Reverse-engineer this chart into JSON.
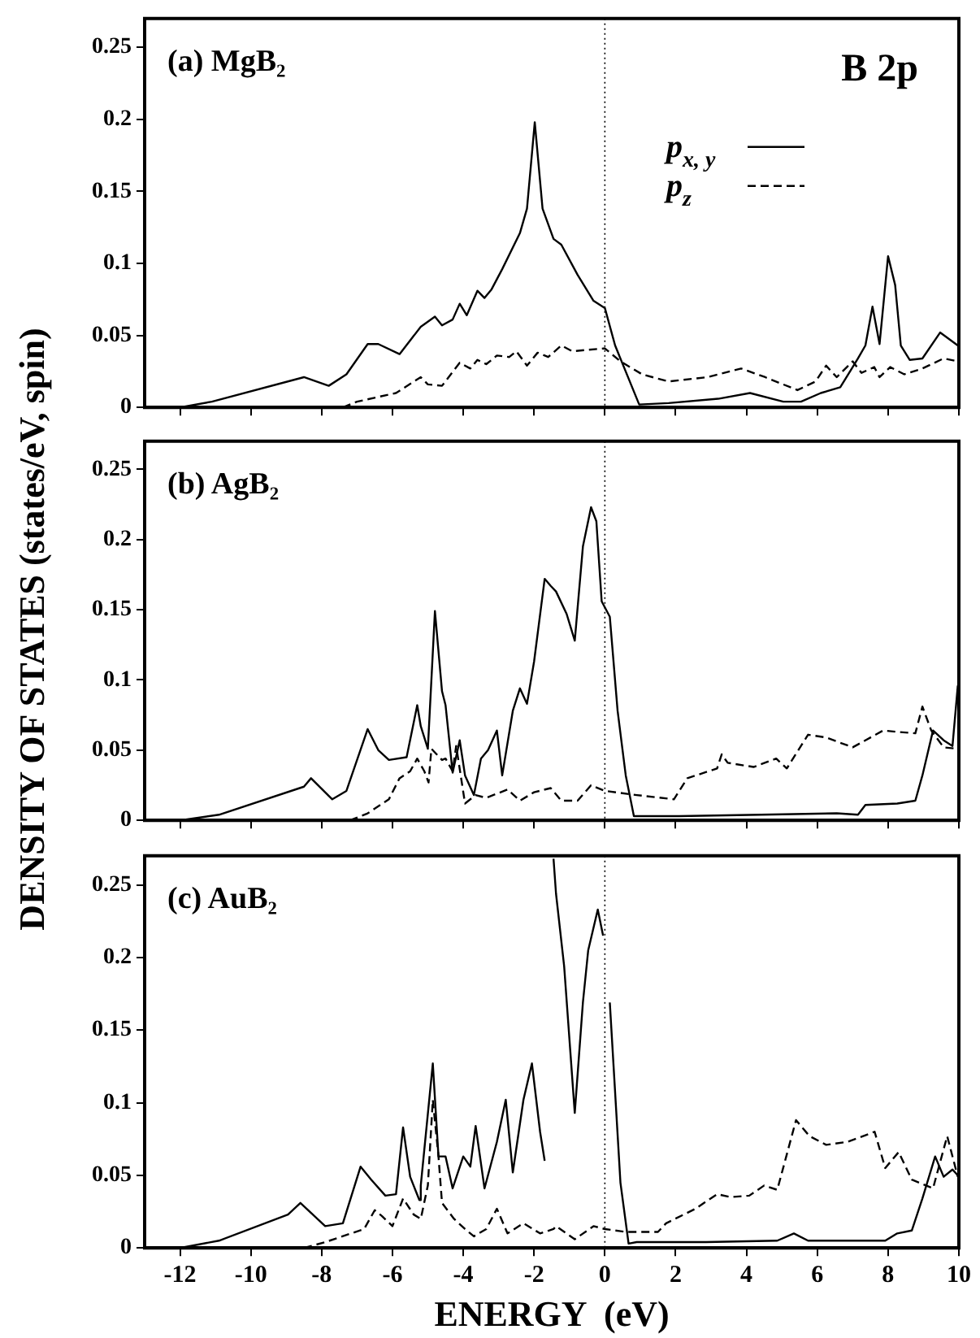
{
  "chart_data": [
    {
      "type": "line",
      "title": "(a) MgB₂",
      "ylabel": "DENSITY OF STATES (states/eV, spin)",
      "annotations": [
        "B 2p"
      ],
      "xlim": [
        -13,
        10
      ],
      "xticks": [
        -12,
        -10,
        -8,
        -6,
        -4,
        -2,
        0,
        2,
        4,
        6,
        8,
        10
      ],
      "ylim": [
        0,
        0.27
      ],
      "yticks": [
        0,
        0.05,
        0.1,
        0.15,
        0.2,
        0.25
      ],
      "tick_labels": "y",
      "legend": "top right",
      "ref_lines": [
        {
          "axis": "x",
          "value": 0,
          "line_style": "dotted"
        }
      ],
      "series": [
        {
          "name": "p$_{x, y}$",
          "color": "#000000",
          "line_style": "solid",
          "x": [
            -12,
            -11.1,
            -8.5,
            -7.8,
            -7.3,
            -6.7,
            -6.4,
            -5.8,
            -5.2,
            -4.8,
            -4.6,
            -4.3,
            -4.1,
            -3.9,
            -3.6,
            -3.4,
            -3.2,
            -2.9,
            -2.4,
            -2.2,
            -1.98,
            -1.76,
            -1.45,
            -1.23,
            -0.77,
            -0.32,
            0,
            0.29,
            0.97,
            1.8,
            3.2,
            4.1,
            5.04,
            5.54,
            6.1,
            6.65,
            7.0,
            7.15,
            7.36,
            7.56,
            7.76,
            8.0,
            8.2,
            8.36,
            8.61,
            8.97,
            9.47,
            9.97
          ],
          "values": [
            0,
            0.004,
            0.021,
            0.015,
            0.023,
            0.044,
            0.044,
            0.037,
            0.056,
            0.063,
            0.057,
            0.061,
            0.072,
            0.064,
            0.081,
            0.076,
            0.082,
            0.096,
            0.121,
            0.138,
            0.198,
            0.138,
            0.117,
            0.113,
            0.092,
            0.074,
            0.069,
            0.043,
            0.002,
            0.003,
            0.006,
            0.01,
            0.004,
            0.004,
            0.01,
            0.014,
            0.028,
            0.034,
            0.043,
            0.07,
            0.044,
            0.105,
            0.085,
            0.043,
            0.033,
            0.034,
            0.052,
            0.043
          ]
        },
        {
          "name": "p$_{z}$",
          "color": "#000000",
          "line_style": "dashed",
          "x": [
            -7.4,
            -7.0,
            -5.9,
            -5.2,
            -5.0,
            -4.6,
            -4.1,
            -3.8,
            -3.6,
            -3.35,
            -3.05,
            -2.7,
            -2.5,
            -2.2,
            -1.9,
            -1.6,
            -1.23,
            -0.92,
            0,
            0.44,
            1.05,
            1.8,
            2.9,
            3.85,
            4.53,
            5.44,
            5.95,
            6.25,
            6.55,
            7.0,
            7.25,
            7.61,
            7.76,
            8.06,
            8.46,
            8.97,
            9.57,
            9.97
          ],
          "values": [
            0,
            0.004,
            0.01,
            0.021,
            0.016,
            0.015,
            0.031,
            0.027,
            0.033,
            0.03,
            0.036,
            0.035,
            0.039,
            0.029,
            0.038,
            0.035,
            0.043,
            0.039,
            0.041,
            0.032,
            0.023,
            0.018,
            0.021,
            0.027,
            0.021,
            0.012,
            0.018,
            0.029,
            0.021,
            0.032,
            0.024,
            0.028,
            0.021,
            0.028,
            0.023,
            0.027,
            0.034,
            0.032
          ]
        }
      ]
    },
    {
      "type": "line",
      "title": "(b) AgB₂",
      "xlim": [
        -13,
        10
      ],
      "xticks": [
        -12,
        -10,
        -8,
        -6,
        -4,
        -2,
        0,
        2,
        4,
        6,
        8,
        10
      ],
      "ylim": [
        0,
        0.27
      ],
      "yticks": [
        0,
        0.05,
        0.1,
        0.15,
        0.2,
        0.25
      ],
      "tick_labels": "y",
      "ref_lines": [
        {
          "axis": "x",
          "value": 0,
          "line_style": "dotted"
        }
      ],
      "series": [
        {
          "color": "#000000",
          "line_style": "solid",
          "x": [
            -12,
            -10.9,
            -8.5,
            -8.3,
            -7.7,
            -7.3,
            -6.7,
            -6.4,
            -6.1,
            -5.6,
            -5.3,
            -5.2,
            -5.0,
            -4.8,
            -4.6,
            -4.5,
            -4.3,
            -4.1,
            -3.95,
            -3.7,
            -3.5,
            -3.3,
            -3.05,
            -2.9,
            -2.6,
            -2.4,
            -2.2,
            -2.0,
            -1.7,
            -1.53,
            -1.38,
            -1.08,
            -0.85,
            -0.62,
            -0.39,
            -0.24,
            -0.09,
            0.14,
            0.36,
            0.59,
            0.82,
            2.1,
            4.4,
            6.55,
            7.15,
            7.36,
            8.26,
            8.77,
            8.97,
            9.27,
            9.57,
            9.82,
            9.97
          ],
          "values": [
            0,
            0.004,
            0.024,
            0.03,
            0.015,
            0.021,
            0.065,
            0.05,
            0.043,
            0.045,
            0.082,
            0.067,
            0.051,
            0.149,
            0.092,
            0.082,
            0.034,
            0.057,
            0.032,
            0.018,
            0.044,
            0.05,
            0.064,
            0.032,
            0.078,
            0.094,
            0.083,
            0.113,
            0.172,
            0.167,
            0.163,
            0.147,
            0.128,
            0.195,
            0.223,
            0.213,
            0.156,
            0.145,
            0.078,
            0.032,
            0.003,
            0.003,
            0.004,
            0.005,
            0.004,
            0.011,
            0.012,
            0.014,
            0.032,
            0.064,
            0.057,
            0.053,
            0.096
          ]
        },
        {
          "color": "#000000",
          "line_style": "dashed",
          "x": [
            -7.2,
            -6.7,
            -6.1,
            -5.8,
            -5.5,
            -5.3,
            -5.1,
            -4.98,
            -4.9,
            -4.6,
            -4.5,
            -4.3,
            -4.2,
            -3.95,
            -3.65,
            -3.35,
            -2.75,
            -2.4,
            -2.0,
            -1.53,
            -1.23,
            -0.77,
            -0.39,
            0,
            0.9,
            1.95,
            2.33,
            3.17,
            3.3,
            3.47,
            4.2,
            4.84,
            5.14,
            5.74,
            6.25,
            7.0,
            7.86,
            8.26,
            8.77,
            8.97,
            9.22,
            9.57,
            9.97
          ],
          "values": [
            0,
            0.005,
            0.015,
            0.03,
            0.035,
            0.044,
            0.035,
            0.027,
            0.051,
            0.043,
            0.044,
            0.035,
            0.053,
            0.012,
            0.018,
            0.016,
            0.022,
            0.014,
            0.02,
            0.023,
            0.014,
            0.014,
            0.025,
            0.021,
            0.018,
            0.015,
            0.03,
            0.037,
            0.047,
            0.041,
            0.038,
            0.044,
            0.037,
            0.061,
            0.059,
            0.052,
            0.064,
            0.063,
            0.062,
            0.081,
            0.064,
            0.052,
            0.051
          ]
        }
      ]
    },
    {
      "type": "line",
      "title": "(c) AuB₂",
      "xlabel": "ENERGY  (eV)",
      "xlim": [
        -13,
        10
      ],
      "xticks": [
        -12,
        -10,
        -8,
        -6,
        -4,
        -2,
        0,
        2,
        4,
        6,
        8,
        10
      ],
      "ylim": [
        0,
        0.27
      ],
      "yticks": [
        0,
        0.05,
        0.1,
        0.15,
        0.2,
        0.25
      ],
      "ref_lines": [
        {
          "axis": "x",
          "value": 0,
          "line_style": "dotted"
        }
      ],
      "series": [
        {
          "color": "#000000",
          "line_style": "solid",
          "x": [
            -12,
            -10.9,
            -8.95,
            -8.6,
            -7.9,
            -7.4,
            -6.9,
            -6.6,
            -6.2,
            -5.9,
            -5.7,
            -5.5,
            -5.24,
            -5.2,
            -4.86,
            -4.7,
            -4.5,
            -4.3,
            -4.0,
            -3.8,
            -3.65,
            -3.4,
            -3.05,
            -2.8,
            -2.6,
            -2.3,
            -2.06,
            -1.83,
            -1.7,
            -1.5,
            -1.45,
            -1.38,
            -1.15,
            -0.85,
            -0.62,
            -0.47,
            -0.2,
            -0.05,
            0.06,
            0.14,
            0.44,
            0.67,
            0.9,
            2.86,
            4.87,
            5.34,
            5.74,
            7.92,
            8.26,
            8.67,
            8.97,
            9.33,
            9.57,
            9.82,
            9.97
          ],
          "values": [
            0,
            0.005,
            0.023,
            0.031,
            0.015,
            0.017,
            0.056,
            0.047,
            0.036,
            0.037,
            0.083,
            0.049,
            0.033,
            0.043,
            0.127,
            0.063,
            0.063,
            0.041,
            0.063,
            0.056,
            0.084,
            0.041,
            0.073,
            0.102,
            0.052,
            0.102,
            0.127,
            0.08,
            0.06,
            null,
            0.268,
            0.244,
            0.194,
            0.093,
            0.169,
            0.205,
            0.233,
            0.215,
            null,
            0.169,
            0.045,
            0.003,
            0.004,
            0.004,
            0.005,
            0.01,
            0.005,
            0.005,
            0.01,
            0.012,
            0.034,
            0.063,
            0.049,
            0.054,
            0.05
          ]
        },
        {
          "color": "#000000",
          "line_style": "dashed",
          "x": [
            -8.5,
            -7.9,
            -6.8,
            -6.5,
            -6.3,
            -6.0,
            -5.7,
            -5.4,
            -5.2,
            -5.0,
            -4.86,
            -4.7,
            -4.6,
            -4.26,
            -3.95,
            -3.7,
            -3.35,
            -3.05,
            -2.75,
            -2.3,
            -1.83,
            -1.45,
            -1.38,
            -0.85,
            -0.32,
            0,
            0.6,
            1.5,
            1.73,
            2.56,
            3.17,
            3.55,
            4.08,
            4.5,
            4.87,
            5.4,
            5.78,
            6.25,
            6.85,
            7.62,
            7.92,
            8.3,
            8.67,
            9.27,
            9.67,
            9.97
          ],
          "values": [
            0,
            0.004,
            0.013,
            0.026,
            0.022,
            0.015,
            0.034,
            0.023,
            0.02,
            0.043,
            0.102,
            0.063,
            0.031,
            0.02,
            0.013,
            0.008,
            0.013,
            0.027,
            0.01,
            0.017,
            0.01,
            0.013,
            0.015,
            0.006,
            0.015,
            0.013,
            0.011,
            0.011,
            0.017,
            0.027,
            0.037,
            0.035,
            0.036,
            0.043,
            0.04,
            0.088,
            0.077,
            0.071,
            0.073,
            0.08,
            0.055,
            0.066,
            0.047,
            0.041,
            0.077,
            0.049
          ]
        }
      ]
    }
  ]
}
